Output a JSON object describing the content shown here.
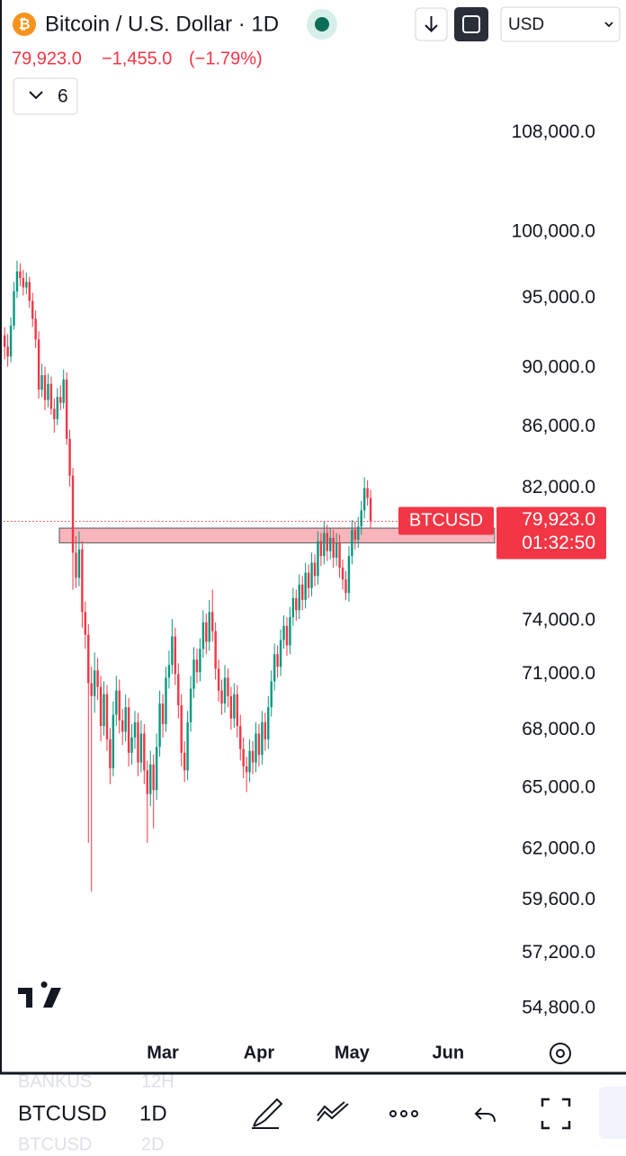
{
  "header": {
    "title": "Bitcoin / U.S. Dollar · 1D",
    "price": "79,923.0",
    "change": "−1,455.0",
    "change_pct": "(−1.79%)",
    "indicators": "6",
    "currency": "USD"
  },
  "chart_data": {
    "type": "candlestick",
    "log_scale": true,
    "up_color": "#089981",
    "down_color": "#f23645",
    "xlim": [
      -1.5,
      158
    ],
    "xticks": [
      {
        "value": 51,
        "label": "Mar"
      },
      {
        "value": 82,
        "label": "Apr"
      },
      {
        "value": 112,
        "label": "May"
      },
      {
        "value": 143,
        "label": "Jun"
      }
    ],
    "ylim": [
      53700,
      116400
    ],
    "yticks": [
      {
        "value": 54800,
        "label": "54,800.0"
      },
      {
        "value": 57200,
        "label": "57,200.0"
      },
      {
        "value": 59600,
        "label": "59,600.0"
      },
      {
        "value": 62000,
        "label": "62,000.0"
      },
      {
        "value": 65000,
        "label": "65,000.0"
      },
      {
        "value": 68000,
        "label": "68,000.0"
      },
      {
        "value": 71000,
        "label": "71,000.0"
      },
      {
        "value": 74000,
        "label": "74,000.0"
      },
      {
        "value": 82000,
        "label": "82,000.0"
      },
      {
        "value": 86000,
        "label": "86,000.0"
      },
      {
        "value": 90000,
        "label": "90,000.0"
      },
      {
        "value": 95000,
        "label": "95,000.0"
      },
      {
        "value": 100000,
        "label": "100,000.0"
      },
      {
        "value": 108000,
        "label": "108,000.0"
      }
    ],
    "zone": [
      78600,
      79500
    ],
    "price_tag": {
      "value": 79923,
      "label": "79,923.0"
    },
    "symbol_label": "BTCUSD",
    "countdown": "01:32:50",
    "ohlc": [
      [
        92300,
        92900,
        90600,
        91500
      ],
      [
        91500,
        92400,
        90100,
        90800
      ],
      [
        90800,
        93600,
        90400,
        93000
      ],
      [
        93000,
        96200,
        92700,
        95500
      ],
      [
        95500,
        97800,
        95000,
        97000
      ],
      [
        97000,
        97600,
        95900,
        96500
      ],
      [
        96500,
        97100,
        95200,
        95800
      ],
      [
        95800,
        96900,
        95300,
        96200
      ],
      [
        96200,
        96600,
        94300,
        94800
      ],
      [
        94800,
        95400,
        92900,
        93500
      ],
      [
        93500,
        94100,
        91400,
        92000
      ],
      [
        92000,
        92600,
        87900,
        88500
      ],
      [
        88500,
        90300,
        88000,
        89500
      ],
      [
        89500,
        90100,
        87100,
        87800
      ],
      [
        87800,
        89600,
        87300,
        88900
      ],
      [
        88900,
        89400,
        86800,
        87200
      ],
      [
        87200,
        87900,
        85600,
        86500
      ],
      [
        86500,
        88600,
        86100,
        88000
      ],
      [
        88000,
        88800,
        87100,
        87600
      ],
      [
        87600,
        89900,
        87200,
        89200
      ],
      [
        89200,
        89700,
        84800,
        85200
      ],
      [
        85200,
        85800,
        82100,
        82800
      ],
      [
        82800,
        83300,
        75800,
        78000
      ],
      [
        78000,
        79000,
        75900,
        76500
      ],
      [
        76500,
        79300,
        76000,
        78200
      ],
      [
        78200,
        78700,
        73600,
        74500
      ],
      [
        74500,
        75100,
        72400,
        73200
      ],
      [
        73200,
        73800,
        62300,
        70500
      ],
      [
        70500,
        71400,
        60000,
        69800
      ],
      [
        69800,
        72200,
        68900,
        71200
      ],
      [
        71200,
        71900,
        69600,
        70300
      ],
      [
        70300,
        70900,
        67400,
        68200
      ],
      [
        68200,
        70600,
        67700,
        69900
      ],
      [
        69900,
        70400,
        66900,
        67500
      ],
      [
        67500,
        68100,
        65200,
        66000
      ],
      [
        66000,
        69500,
        65600,
        68800
      ],
      [
        68800,
        70900,
        68200,
        70100
      ],
      [
        70100,
        70700,
        67800,
        68500
      ],
      [
        68500,
        69100,
        67200,
        67900
      ],
      [
        67900,
        69900,
        67400,
        69200
      ],
      [
        69200,
        69700,
        66100,
        66800
      ],
      [
        66800,
        68300,
        66200,
        67600
      ],
      [
        67600,
        69000,
        67000,
        68400
      ],
      [
        68400,
        68900,
        65600,
        66300
      ],
      [
        66300,
        68500,
        65800,
        67800
      ],
      [
        67800,
        68300,
        65200,
        65900
      ],
      [
        65900,
        66400,
        62300,
        64700
      ],
      [
        64700,
        66900,
        64100,
        66200
      ],
      [
        66200,
        66700,
        63000,
        64900
      ],
      [
        64900,
        67800,
        64400,
        67100
      ],
      [
        67100,
        70100,
        66600,
        69400
      ],
      [
        69400,
        69900,
        67600,
        68300
      ],
      [
        68300,
        71400,
        67900,
        70800
      ],
      [
        70800,
        72300,
        70200,
        71500
      ],
      [
        71500,
        74100,
        71000,
        73100
      ],
      [
        73100,
        73600,
        70400,
        71000
      ],
      [
        71000,
        71600,
        68600,
        69300
      ],
      [
        69300,
        69900,
        66100,
        66800
      ],
      [
        66800,
        67400,
        65300,
        65900
      ],
      [
        65900,
        69000,
        65400,
        68400
      ],
      [
        68400,
        70900,
        67900,
        70200
      ],
      [
        70200,
        72500,
        69700,
        71800
      ],
      [
        71800,
        72400,
        70500,
        71100
      ],
      [
        71100,
        73000,
        70600,
        72400
      ],
      [
        72400,
        74600,
        71900,
        73900
      ],
      [
        73900,
        74400,
        72100,
        72800
      ],
      [
        72800,
        75200,
        72300,
        74500
      ],
      [
        74500,
        75800,
        72800,
        73400
      ],
      [
        73400,
        73900,
        70700,
        71300
      ],
      [
        71300,
        71800,
        69500,
        70100
      ],
      [
        70100,
        70700,
        68800,
        69400
      ],
      [
        69400,
        71500,
        68900,
        70800
      ],
      [
        70800,
        71300,
        69200,
        69800
      ],
      [
        69800,
        70300,
        68000,
        68600
      ],
      [
        68600,
        70500,
        68100,
        69900
      ],
      [
        69900,
        70400,
        67600,
        68200
      ],
      [
        68200,
        68800,
        66400,
        67000
      ],
      [
        67000,
        67600,
        65500,
        66100
      ],
      [
        66100,
        66600,
        64800,
        65800
      ],
      [
        65800,
        67500,
        65300,
        66900
      ],
      [
        66900,
        67400,
        65700,
        66300
      ],
      [
        66300,
        68400,
        65800,
        67800
      ],
      [
        67800,
        68300,
        66100,
        66700
      ],
      [
        66700,
        69000,
        66200,
        68400
      ],
      [
        68400,
        68900,
        66900,
        67500
      ],
      [
        67500,
        69800,
        67000,
        69200
      ],
      [
        69200,
        71200,
        68700,
        70600
      ],
      [
        70600,
        72700,
        70100,
        72100
      ],
      [
        72100,
        72600,
        70800,
        71400
      ],
      [
        71400,
        73500,
        70900,
        72900
      ],
      [
        72900,
        74300,
        72400,
        73700
      ],
      [
        73700,
        74200,
        72000,
        72600
      ],
      [
        72600,
        74800,
        72100,
        74200
      ],
      [
        74200,
        75900,
        73700,
        75300
      ],
      [
        75300,
        75800,
        74000,
        74600
      ],
      [
        74600,
        76700,
        74100,
        76100
      ],
      [
        76100,
        76600,
        74600,
        75200
      ],
      [
        75200,
        77400,
        74700,
        76800
      ],
      [
        76800,
        77300,
        75300,
        75900
      ],
      [
        75900,
        78000,
        75400,
        77400
      ],
      [
        77400,
        77900,
        76000,
        76600
      ],
      [
        76600,
        79300,
        76100,
        78700
      ],
      [
        78700,
        79200,
        77200,
        77800
      ],
      [
        77800,
        79900,
        77300,
        79200
      ],
      [
        79200,
        79700,
        77500,
        78100
      ],
      [
        78100,
        79500,
        77600,
        78900
      ],
      [
        78900,
        79400,
        77100,
        77700
      ],
      [
        77700,
        79200,
        77200,
        78600
      ],
      [
        78600,
        79100,
        76500,
        77100
      ],
      [
        77100,
        77600,
        75800,
        76400
      ],
      [
        76400,
        76900,
        75200,
        75600
      ],
      [
        75600,
        78400,
        75100,
        77800
      ],
      [
        77800,
        80000,
        77300,
        79400
      ],
      [
        79400,
        79900,
        78200,
        78800
      ],
      [
        78800,
        80200,
        78300,
        79600
      ],
      [
        79600,
        81200,
        79100,
        80600
      ],
      [
        80600,
        82700,
        80100,
        82000
      ],
      [
        82000,
        82500,
        80900,
        81378
      ],
      [
        81378,
        81900,
        79500,
        79923
      ]
    ]
  },
  "toolbar": {
    "symbol": "BTCUSD",
    "interval": "1D",
    "prev_symbol": "BANKUS",
    "prev_interval": "12H",
    "next_symbol": "BTCUSD",
    "next_interval": "2D"
  }
}
